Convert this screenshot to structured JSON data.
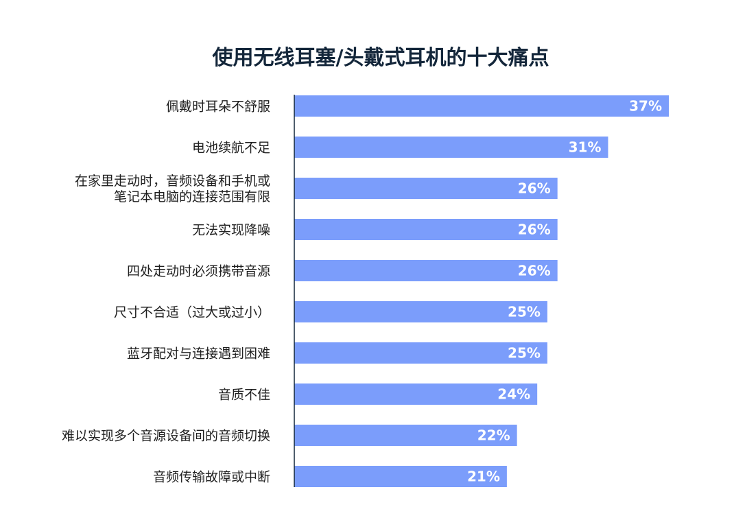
{
  "chart_data": {
    "type": "bar",
    "orientation": "horizontal",
    "title": "使用无线耳塞/头戴式耳机的十大痛点",
    "value_suffix": "%",
    "xlim": [
      0,
      37
    ],
    "grid": false,
    "bar_color": "#7b9dfb",
    "title_color": "#13263a",
    "categories": [
      [
        "佩戴时耳朵不舒服"
      ],
      [
        "电池续航不足"
      ],
      [
        "在家里走动时，音频设备和手机或",
        "笔记本电脑的连接范围有限"
      ],
      [
        "无法实现降噪"
      ],
      [
        "四处走动时必须携带音源"
      ],
      [
        "尺寸不合适（过大或过小）"
      ],
      [
        "蓝牙配对与连接遇到困难"
      ],
      [
        "音质不佳"
      ],
      [
        "难以实现多个音源设备间的音频切换"
      ],
      [
        "音频传输故障或中断"
      ]
    ],
    "values": [
      37,
      31,
      26,
      26,
      26,
      25,
      25,
      24,
      22,
      21
    ]
  }
}
